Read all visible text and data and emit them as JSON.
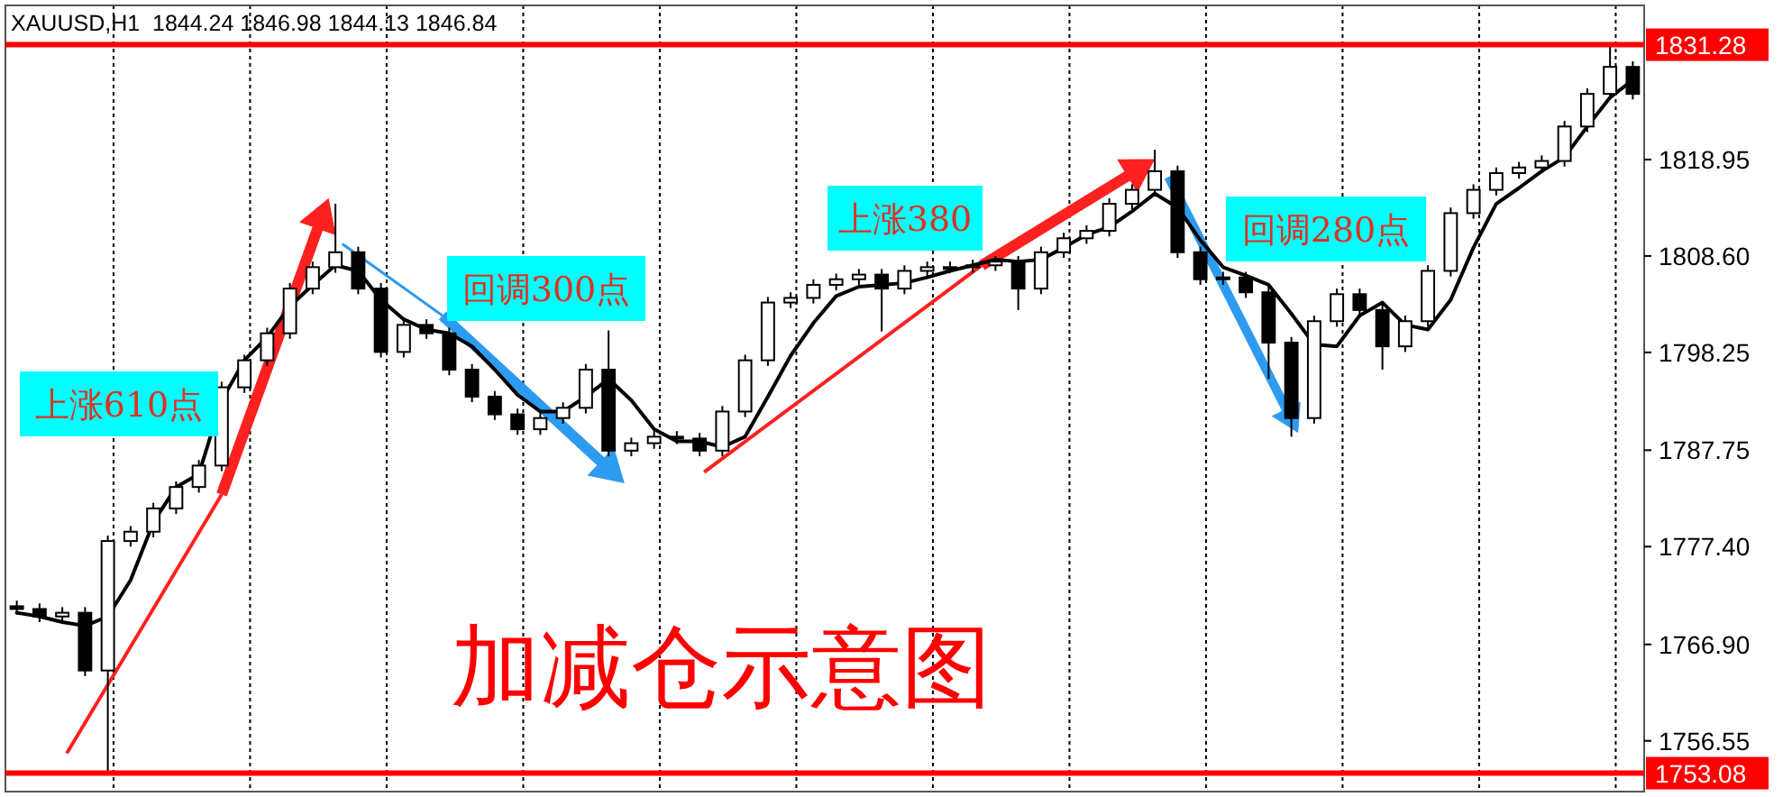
{
  "chart_data": {
    "type": "candlestick",
    "title": "XAUUSD,H1  1844.24 1846.98 1844.13 1846.84",
    "categories": [
      null,
      null,
      null,
      null,
      null,
      null,
      null,
      null,
      null,
      null,
      null,
      null,
      null,
      null,
      null,
      null,
      null,
      null,
      null,
      null,
      null,
      null,
      null,
      null,
      null,
      null,
      null,
      null,
      null,
      null,
      null,
      null,
      null,
      null,
      null,
      null,
      null,
      null,
      null,
      null,
      null,
      null,
      null,
      null,
      null,
      null,
      null,
      null,
      null,
      null,
      null,
      null,
      null,
      null,
      null,
      null,
      null,
      null,
      null,
      null,
      null,
      null,
      null,
      null,
      null,
      null,
      null,
      null,
      null,
      null,
      null,
      null
    ],
    "ohlc": [
      [
        1771.0,
        1771.6,
        1770.1,
        1770.7
      ],
      [
        1770.7,
        1771.3,
        1769.3,
        1769.9
      ],
      [
        1769.9,
        1770.9,
        1769.3,
        1770.3
      ],
      [
        1770.3,
        1770.9,
        1763.5,
        1764.1
      ],
      [
        1764.1,
        1778.6,
        1753.3,
        1778.0
      ],
      [
        1778.0,
        1779.6,
        1777.4,
        1779.0
      ],
      [
        1779.0,
        1782.1,
        1778.4,
        1781.5
      ],
      [
        1781.5,
        1784.4,
        1780.9,
        1783.8
      ],
      [
        1783.8,
        1786.7,
        1783.2,
        1786.1
      ],
      [
        1786.1,
        1795.1,
        1785.5,
        1794.5
      ],
      [
        1794.5,
        1798.0,
        1793.9,
        1797.4
      ],
      [
        1797.4,
        1800.9,
        1796.8,
        1800.3
      ],
      [
        1800.3,
        1805.7,
        1799.7,
        1805.1
      ],
      [
        1805.1,
        1808.0,
        1804.5,
        1807.4
      ],
      [
        1807.4,
        1814.2,
        1806.8,
        1809.0
      ],
      [
        1809.0,
        1809.6,
        1804.5,
        1805.1
      ],
      [
        1805.1,
        1805.7,
        1797.7,
        1798.3
      ],
      [
        1798.3,
        1801.8,
        1797.7,
        1801.2
      ],
      [
        1801.2,
        1801.8,
        1799.7,
        1800.3
      ],
      [
        1800.3,
        1800.9,
        1795.8,
        1796.4
      ],
      [
        1796.4,
        1797.0,
        1792.9,
        1793.5
      ],
      [
        1793.5,
        1794.1,
        1791.0,
        1791.6
      ],
      [
        1791.6,
        1792.2,
        1789.4,
        1790.0
      ],
      [
        1790.0,
        1791.8,
        1789.4,
        1791.2
      ],
      [
        1791.2,
        1792.9,
        1790.6,
        1792.3
      ],
      [
        1792.3,
        1797.0,
        1791.7,
        1796.4
      ],
      [
        1796.4,
        1800.6,
        1787.1,
        1787.7
      ],
      [
        1787.7,
        1789.1,
        1787.1,
        1788.5
      ],
      [
        1788.5,
        1789.8,
        1787.9,
        1789.2
      ],
      [
        1789.2,
        1789.8,
        1788.4,
        1789.0
      ],
      [
        1789.0,
        1789.6,
        1787.1,
        1787.7
      ],
      [
        1787.7,
        1792.5,
        1787.1,
        1791.9
      ],
      [
        1791.9,
        1798.0,
        1791.3,
        1797.4
      ],
      [
        1797.4,
        1804.2,
        1796.8,
        1803.6
      ],
      [
        1803.6,
        1804.7,
        1803.0,
        1804.1
      ],
      [
        1804.1,
        1806.1,
        1803.5,
        1805.5
      ],
      [
        1805.5,
        1806.7,
        1804.9,
        1806.1
      ],
      [
        1806.1,
        1807.2,
        1805.5,
        1806.6
      ],
      [
        1806.6,
        1807.2,
        1800.5,
        1805.1
      ],
      [
        1805.1,
        1807.6,
        1804.5,
        1807.0
      ],
      [
        1807.0,
        1808.0,
        1806.4,
        1807.4
      ],
      [
        1807.4,
        1808.0,
        1806.8,
        1807.4
      ],
      [
        1807.4,
        1808.2,
        1806.8,
        1807.6
      ],
      [
        1807.6,
        1808.6,
        1807.0,
        1808.0
      ],
      [
        1808.0,
        1808.6,
        1802.8,
        1805.1
      ],
      [
        1805.1,
        1809.6,
        1804.5,
        1809.0
      ],
      [
        1809.0,
        1811.1,
        1808.4,
        1810.5
      ],
      [
        1810.5,
        1811.9,
        1809.9,
        1811.3
      ],
      [
        1811.3,
        1814.8,
        1810.7,
        1814.2
      ],
      [
        1814.2,
        1816.3,
        1813.6,
        1815.7
      ],
      [
        1815.7,
        1820.0,
        1815.1,
        1817.7
      ],
      [
        1817.7,
        1818.3,
        1808.4,
        1809.0
      ],
      [
        1809.0,
        1809.6,
        1805.5,
        1806.1
      ],
      [
        1806.1,
        1806.9,
        1805.5,
        1806.3
      ],
      [
        1806.3,
        1806.9,
        1804.1,
        1804.7
      ],
      [
        1804.7,
        1805.3,
        1795.4,
        1799.3
      ],
      [
        1799.3,
        1799.9,
        1789.2,
        1791.2
      ],
      [
        1791.2,
        1802.2,
        1790.6,
        1801.6
      ],
      [
        1801.6,
        1805.1,
        1801.0,
        1804.5
      ],
      [
        1804.5,
        1805.1,
        1802.2,
        1802.8
      ],
      [
        1802.8,
        1803.4,
        1796.4,
        1798.9
      ],
      [
        1798.9,
        1802.2,
        1798.3,
        1801.6
      ],
      [
        1801.6,
        1807.6,
        1801.0,
        1807.0
      ],
      [
        1807.0,
        1813.8,
        1806.4,
        1813.2
      ],
      [
        1813.2,
        1816.3,
        1812.6,
        1815.7
      ],
      [
        1815.7,
        1818.1,
        1815.1,
        1817.5
      ],
      [
        1817.5,
        1818.7,
        1816.9,
        1818.1
      ],
      [
        1818.1,
        1819.4,
        1817.5,
        1818.8
      ],
      [
        1818.8,
        1823.1,
        1818.2,
        1822.5
      ],
      [
        1822.5,
        1826.6,
        1821.9,
        1826.0
      ],
      [
        1826.0,
        1831.2,
        1825.4,
        1828.9
      ],
      [
        1828.9,
        1829.5,
        1825.4,
        1826.0
      ]
    ],
    "color": "#000000",
    "series": [
      {
        "type": "line",
        "color": "#000000",
        "values": [
          1770.3,
          1769.9,
          1769.3,
          1768.9,
          1769.9,
          1773.8,
          1780.0,
          1783.8,
          1785.2,
          1793.1,
          1797.4,
          1799.9,
          1803.2,
          1805.5,
          1807.6,
          1807.0,
          1803.9,
          1801.8,
          1800.7,
          1800.3,
          1798.9,
          1796.4,
          1793.7,
          1791.9,
          1791.9,
          1793.5,
          1795.4,
          1793.1,
          1790.0,
          1788.7,
          1788.7,
          1788.1,
          1789.2,
          1793.5,
          1797.9,
          1801.4,
          1804.3,
          1805.3,
          1805.5,
          1805.7,
          1806.3,
          1807.0,
          1807.6,
          1808.2,
          1808.0,
          1808.2,
          1809.5,
          1810.9,
          1811.7,
          1813.4,
          1815.3,
          1813.8,
          1810.3,
          1807.4,
          1806.5,
          1805.5,
          1802.4,
          1799.1,
          1798.9,
          1802.2,
          1803.6,
          1801.2,
          1800.7,
          1803.9,
          1809.5,
          1814.2,
          1815.9,
          1817.7,
          1819.2,
          1822.5,
          1825.6,
          1827.5
        ]
      }
    ],
    "ylim": [
      1751.1,
      1835.5
    ],
    "yticks": [
      {
        "value": 1756.55,
        "label": "1756.55"
      },
      {
        "value": 1766.9,
        "label": "1766.90"
      },
      {
        "value": 1777.4,
        "label": "1777.40"
      },
      {
        "value": 1787.75,
        "label": "1787.75"
      },
      {
        "value": 1798.25,
        "label": "1798.25"
      },
      {
        "value": 1808.6,
        "label": "1808.60"
      },
      {
        "value": 1818.95,
        "label": "1818.95"
      }
    ],
    "ref_lines": [
      {
        "axis": "y",
        "value": 1831.28,
        "label": "1831.28",
        "color": "#ff0000"
      },
      {
        "axis": "y",
        "value": 1753.08,
        "label": "1753.08",
        "color": "#ff0000"
      }
    ],
    "annotations": [
      "上涨610点",
      "回调300点",
      "上涨380",
      "回调280点",
      "加减仓示意图"
    ],
    "grid": "x"
  }
}
